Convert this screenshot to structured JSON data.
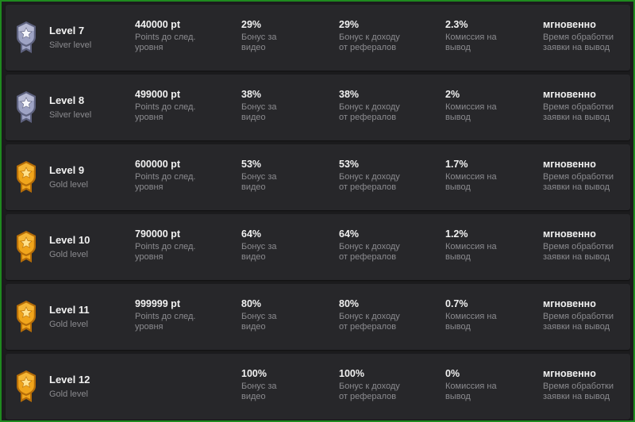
{
  "colors": {
    "frame_border": "#1f8a1f",
    "row_background": "#27272a",
    "silver_badge": "#9ea3c4",
    "gold_badge": "#f0a51c"
  },
  "labels": {
    "points": "Points до след.\nуровня",
    "video_bonus": "Бонус за\nвидео",
    "referral_bonus": "Бонус к доходу\nот рефералов",
    "commission": "Комиссия на\nвывод",
    "processing": "Время обработки\nзаявки на вывод"
  },
  "levels": [
    {
      "icon": "silver-badge-icon",
      "title": "Level 7",
      "tier": "Silver level",
      "points": "440000 pt",
      "video_bonus": "29%",
      "referral_bonus": "29%",
      "commission": "2.3%",
      "processing": "мгновенно"
    },
    {
      "icon": "silver-badge-icon",
      "title": "Level 8",
      "tier": "Silver level",
      "points": "499000 pt",
      "video_bonus": "38%",
      "referral_bonus": "38%",
      "commission": "2%",
      "processing": "мгновенно"
    },
    {
      "icon": "gold-badge-icon",
      "title": "Level 9",
      "tier": "Gold level",
      "points": "600000 pt",
      "video_bonus": "53%",
      "referral_bonus": "53%",
      "commission": "1.7%",
      "processing": "мгновенно"
    },
    {
      "icon": "gold-badge-icon",
      "title": "Level 10",
      "tier": "Gold level",
      "points": "790000 pt",
      "video_bonus": "64%",
      "referral_bonus": "64%",
      "commission": "1.2%",
      "processing": "мгновенно"
    },
    {
      "icon": "gold-badge-icon",
      "title": "Level 11",
      "tier": "Gold level",
      "points": "999999 pt",
      "video_bonus": "80%",
      "referral_bonus": "80%",
      "commission": "0.7%",
      "processing": "мгновенно"
    },
    {
      "icon": "gold-badge-icon",
      "title": "Level 12",
      "tier": "Gold level",
      "points": null,
      "video_bonus": "100%",
      "referral_bonus": "100%",
      "commission": "0%",
      "processing": "мгновенно"
    }
  ]
}
